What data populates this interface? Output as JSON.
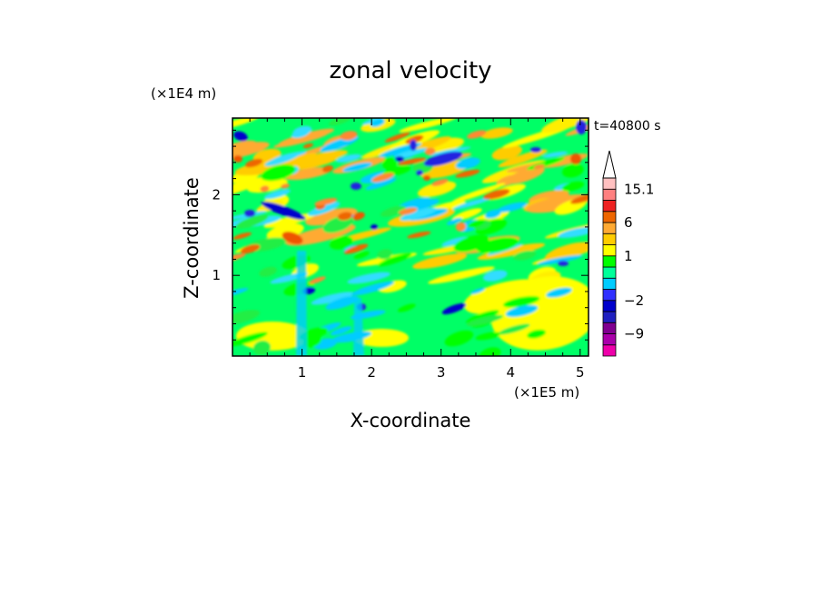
{
  "chart_data": {
    "type": "heatmap",
    "title": "zonal velocity",
    "xlabel": "X-coordinate",
    "ylabel": "Z-coordinate",
    "x_unit": "(×1E5 m)",
    "y_unit": "(×1E4 m)",
    "annotation": "t=40800 s",
    "xlim": [
      0,
      5.12
    ],
    "ylim": [
      0,
      2.95
    ],
    "x_ticks": [
      "1",
      "2",
      "3",
      "4",
      "5"
    ],
    "y_ticks": [
      "1",
      "2"
    ],
    "colorbar": {
      "labels": [
        {
          "text": "15.1",
          "value": 15.1
        },
        {
          "text": "6",
          "value": 6
        },
        {
          "text": "1",
          "value": 1
        },
        {
          "text": "−2",
          "value": -2
        },
        {
          "text": "−9",
          "value": -9
        }
      ],
      "levels": [
        -15,
        -12,
        -9,
        -6,
        -3,
        -2,
        -1,
        0,
        0.5,
        1,
        2,
        3,
        6,
        9,
        12,
        15.1
      ],
      "colors": [
        "#ee00aa",
        "#aa00aa",
        "#800090",
        "#2020c0",
        "#0000cc",
        "#3030ff",
        "#00ccff",
        "#00ff99",
        "#00ff00",
        "#ffff00",
        "#ffcc00",
        "#ffaa33",
        "#ee6600",
        "#ee2222",
        "#ff8080",
        "#ffc0c0"
      ],
      "extend_top": true
    }
  }
}
